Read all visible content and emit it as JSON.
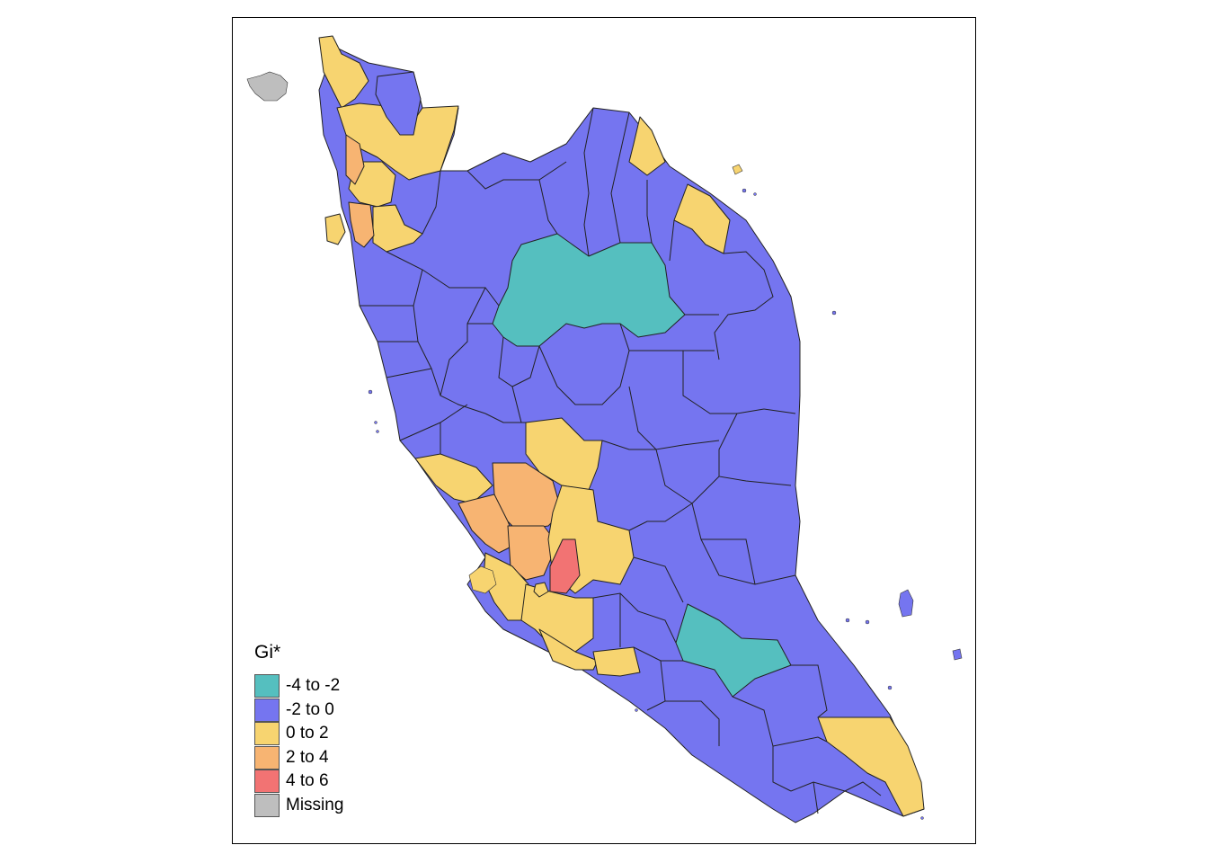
{
  "map": {
    "colors": {
      "neg4_neg2": "#55BFBF",
      "neg2_0": "#7575F0",
      "0_2": "#F7D470",
      "2_4": "#F7B472",
      "4_6": "#F27373",
      "missing": "#BEBEBE"
    }
  },
  "legend": {
    "title": "Gi*",
    "items": [
      {
        "label": "-4 to -2",
        "color": "#55BFBF"
      },
      {
        "label": "-2 to 0",
        "color": "#7575F0"
      },
      {
        "label": "0 to 2",
        "color": "#F7D470"
      },
      {
        "label": "2 to 4",
        "color": "#F7B472"
      },
      {
        "label": "4 to 6",
        "color": "#F27373"
      },
      {
        "label": "Missing",
        "color": "#BEBEBE"
      }
    ]
  }
}
